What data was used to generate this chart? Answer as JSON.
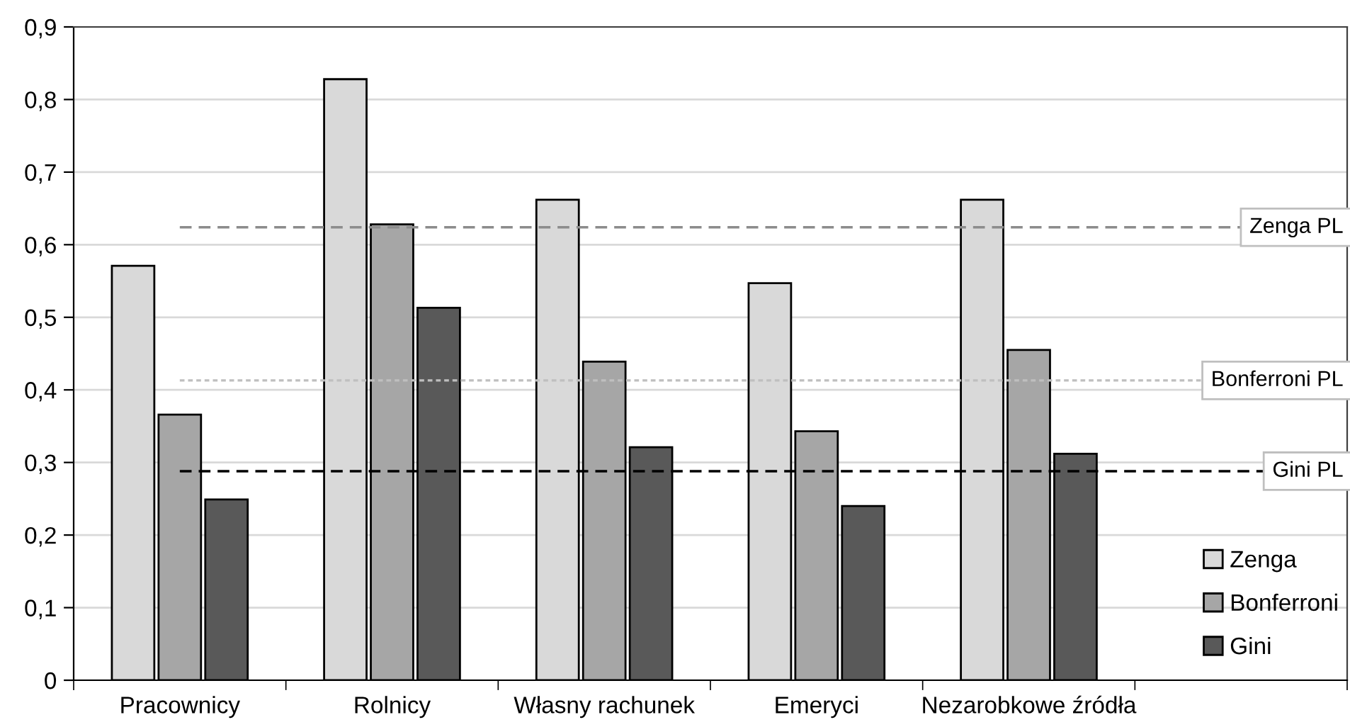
{
  "chart_data": {
    "type": "bar",
    "categories": [
      "Pracownicy",
      "Rolnicy",
      "Własny rachunek",
      "Emeryci",
      "Nezarobkowe źródła",
      null
    ],
    "series": [
      {
        "name": "Zenga",
        "color": "#d9d9d9",
        "values": [
          0.571,
          0.828,
          0.662,
          0.547,
          0.662,
          null
        ]
      },
      {
        "name": "Bonferroni",
        "color": "#a6a6a6",
        "values": [
          0.366,
          0.628,
          0.439,
          0.343,
          0.455,
          null
        ]
      },
      {
        "name": "Gini",
        "color": "#595959",
        "values": [
          0.249,
          0.513,
          0.321,
          0.24,
          0.312,
          null
        ]
      }
    ],
    "ylim": [
      0,
      0.9
    ],
    "yticks": [
      {
        "value": 0,
        "label": "0"
      },
      {
        "value": 0.1,
        "label": "0,1"
      },
      {
        "value": 0.2,
        "label": "0,2"
      },
      {
        "value": 0.3,
        "label": "0,3"
      },
      {
        "value": 0.4,
        "label": "0,4"
      },
      {
        "value": 0.5,
        "label": "0,5"
      },
      {
        "value": 0.6,
        "label": "0,6"
      },
      {
        "value": 0.7,
        "label": "0,7"
      },
      {
        "value": 0.8,
        "label": "0,8"
      },
      {
        "value": 0.9,
        "label": "0,9"
      }
    ],
    "ref_lines": [
      {
        "axis": "y",
        "value": 0.624,
        "label": "Zenga PL",
        "color": "#8c8c8c",
        "line_style": "dashed"
      },
      {
        "axis": "y",
        "value": 0.413,
        "label": "Bonferroni PL",
        "color": "#bfbfbf",
        "line_style": "dotted"
      },
      {
        "axis": "y",
        "value": 0.288,
        "label": "Gini PL",
        "color": "#000000",
        "line_style": "dashed"
      }
    ],
    "grid": "y",
    "legend": "bottom right"
  }
}
